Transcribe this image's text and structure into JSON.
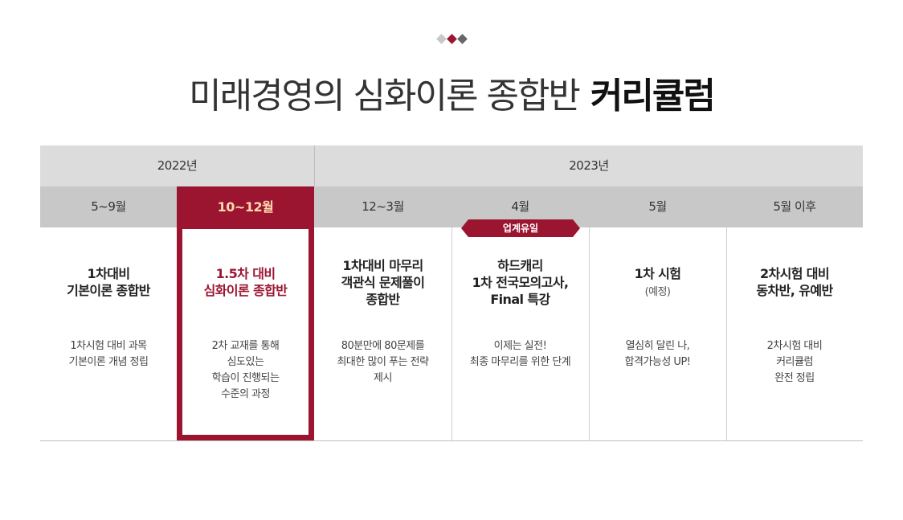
{
  "colors": {
    "accent": "#9b1530",
    "dot_left": "#c8c8c8",
    "dot_mid": "#9b1530",
    "dot_right": "#666666"
  },
  "title": {
    "light": "미래경영의 심화이론 종합반",
    "bold": "커리큘럼"
  },
  "years": [
    "2022년",
    "2023년"
  ],
  "months": [
    "5~9월",
    "10~12월",
    "12~3월",
    "4월",
    "5월",
    "5월 이후"
  ],
  "badge": "업계유일",
  "columns": [
    {
      "heading": [
        "1차대비",
        "기본이론 종합반"
      ],
      "sub": "",
      "desc": [
        "1차시험 대비 과목",
        "기본이론 개념 정립"
      ]
    },
    {
      "heading": [
        "1.5차 대비",
        "심화이론 종합반"
      ],
      "sub": "",
      "desc": [
        "2차 교재를 통해",
        "심도있는",
        "학습이 진행되는",
        "수준의 과정"
      ]
    },
    {
      "heading": [
        "1차대비 마무리",
        "객관식 문제풀이",
        "종합반"
      ],
      "sub": "",
      "desc": [
        "80분만에 80문제를",
        "최대한 많이 푸는 전략",
        "제시"
      ]
    },
    {
      "heading": [
        "하드캐리",
        "1차 전국모의고사,",
        "Final 특강"
      ],
      "sub": "",
      "desc": [
        "이제는 실전!",
        "최종 마무리를 위한 단계"
      ]
    },
    {
      "heading": [
        "1차 시험"
      ],
      "sub": "(예정)",
      "desc": [
        "열심히 달린 나,",
        "합격가능성 UP!"
      ]
    },
    {
      "heading": [
        "2차시험 대비",
        "동차반, 유예반"
      ],
      "sub": "",
      "desc": [
        "2차시험 대비",
        "커리큘럼",
        "완전 정립"
      ]
    }
  ]
}
